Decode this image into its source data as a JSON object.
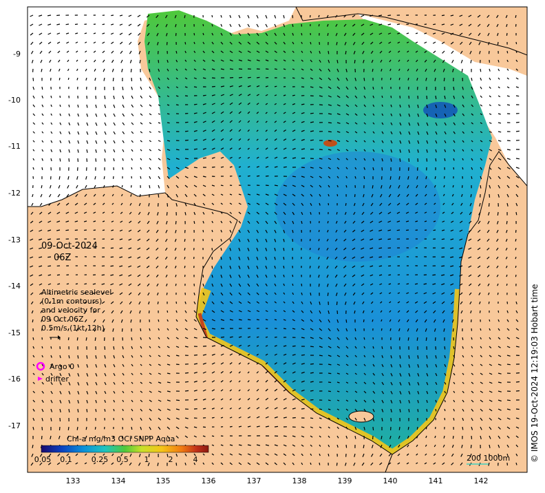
{
  "map": {
    "date_line1": "09-Oct-2024",
    "date_line2": "06Z",
    "sealevel_note": [
      "Altimetric sealevel",
      "(0.1m contours)",
      "and velocity for",
      "09 Oct 06Z",
      "0.5m/s (1kt 12h)"
    ],
    "legend": {
      "argo_label": "Argo 0",
      "drifter_label": "drifter",
      "argo_color": "#ff00ff",
      "drifter_color": "#ff00ff"
    },
    "colorbar": {
      "title": "Chl-a mg/m3 OCi SNPP Aqua",
      "ticks": [
        "0.05",
        "0.1",
        "0.25",
        "0.5",
        "1",
        "2",
        "4"
      ],
      "colors": [
        "#1a0a6e",
        "#0a3fbf",
        "#0b8fd9",
        "#20c4c0",
        "#4fc83a",
        "#c8e02a",
        "#f5c518",
        "#f07a12",
        "#c0301a",
        "#8b1a10"
      ]
    },
    "scale_bar": {
      "label": "200  1000m",
      "color": "#40d0c0"
    },
    "credit": "© IMOS 19-Oct-2024 12:19:03 Hobart time",
    "x_axis_ticks": [
      "133",
      "134",
      "135",
      "136",
      "137",
      "138",
      "139",
      "140",
      "141",
      "142"
    ],
    "y_axis_ticks": [
      "-9",
      "-10",
      "-11",
      "-12",
      "-13",
      "-14",
      "-15",
      "-16",
      "-17"
    ],
    "colors": {
      "land": "#f8c89a",
      "coastline": "#000000",
      "open_ocean": "#ffffff"
    }
  }
}
